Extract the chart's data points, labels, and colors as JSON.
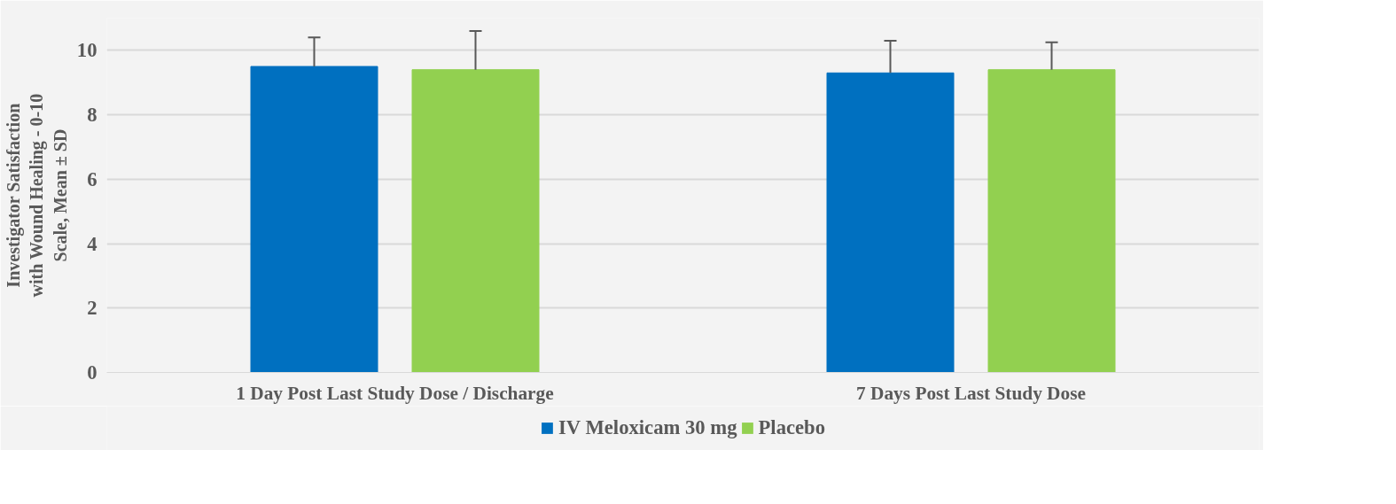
{
  "chart_data": {
    "type": "bar",
    "ylabel": "Investigator Satisfaction with Wound Healing - 0-10 Scale, Mean ± SD",
    "categories": [
      "1 Day Post Last Study Dose / Discharge",
      "7 Days Post Last Study Dose"
    ],
    "series": [
      {
        "name": "IV Meloxicam 30 mg",
        "color": "#0070c0",
        "values": [
          9.5,
          9.3
        ],
        "errors": [
          0.9,
          1.0
        ]
      },
      {
        "name": "Placebo",
        "color": "#92d050",
        "values": [
          9.4,
          9.4
        ],
        "errors": [
          1.2,
          0.85
        ]
      }
    ],
    "ylim": [
      0,
      11
    ],
    "yticks": [
      0,
      2,
      4,
      6,
      8,
      10
    ],
    "grid": "y",
    "legend": "bottom"
  }
}
